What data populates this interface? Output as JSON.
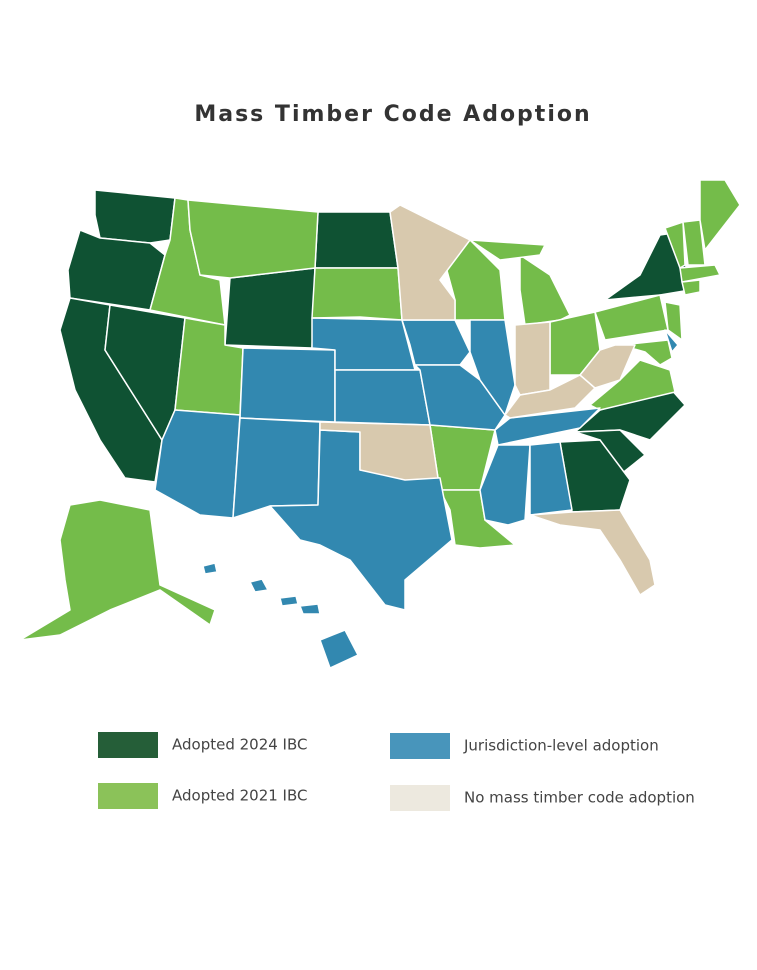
{
  "map": {
    "title": "Mass Timber Code Adoption",
    "legend": [
      {
        "label": "Adopted 2024 IBC",
        "color": "#255e38",
        "map_color": "#0f5233"
      },
      {
        "label": "Adopted 2021 IBC",
        "color": "#8bc259",
        "map_color": "#74bc4a"
      },
      {
        "label": "Jurisdiction-level adoption",
        "color": "#4895bb",
        "map_color": "#3288b0"
      },
      {
        "label": "No mass timber code adoption",
        "color": "#ede9df",
        "map_color": "#d8c9ae"
      }
    ]
  }
}
